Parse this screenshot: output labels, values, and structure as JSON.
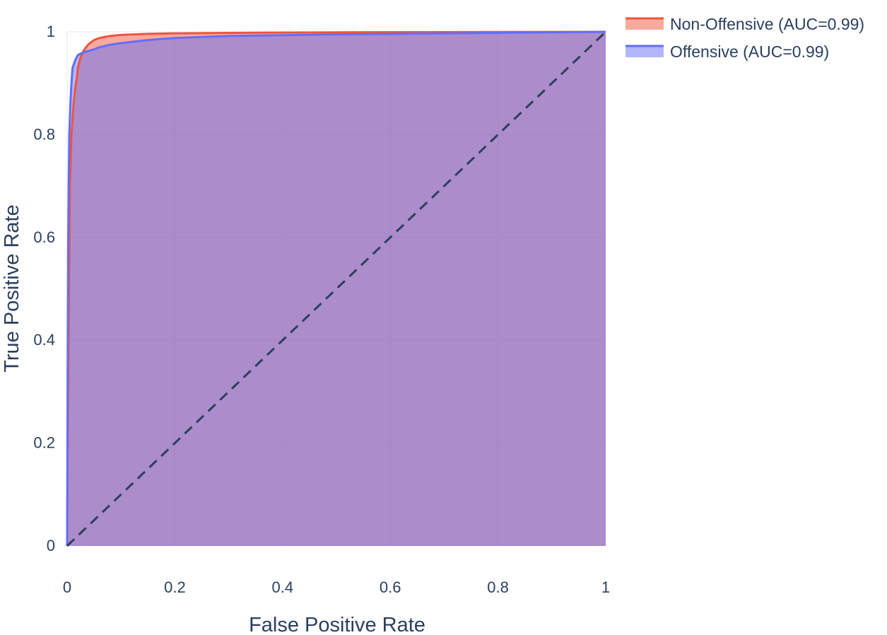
{
  "chart_data": {
    "type": "area",
    "xlabel": "False Positive Rate",
    "ylabel": "True Positive Rate",
    "xlim": [
      0,
      1
    ],
    "ylim": [
      0,
      1
    ],
    "x_ticks": [
      "0",
      "0.2",
      "0.4",
      "0.6",
      "0.8",
      "1"
    ],
    "y_ticks": [
      "0",
      "0.2",
      "0.4",
      "0.6",
      "0.8",
      "1"
    ],
    "grid": true,
    "legend_position": "top-right",
    "series": [
      {
        "name": "Non-Offensive (AUC=0.99)",
        "color": "#ef553b",
        "fill": true,
        "x": [
          0,
          0.001,
          0.003,
          0.005,
          0.008,
          0.01,
          0.012,
          0.015,
          0.018,
          0.02,
          0.025,
          0.03,
          0.035,
          0.04,
          0.05,
          0.06,
          0.08,
          0.1,
          0.15,
          0.2,
          0.3,
          0.5,
          0.7,
          1
        ],
        "y": [
          0,
          0.2,
          0.45,
          0.7,
          0.8,
          0.83,
          0.86,
          0.89,
          0.91,
          0.93,
          0.95,
          0.962,
          0.97,
          0.976,
          0.984,
          0.988,
          0.992,
          0.994,
          0.996,
          0.997,
          0.998,
          0.999,
          0.9995,
          1
        ]
      },
      {
        "name": "Offensive (AUC=0.99)",
        "color": "#636efa",
        "fill": true,
        "x": [
          0,
          0.001,
          0.002,
          0.003,
          0.004,
          0.006,
          0.008,
          0.01,
          0.015,
          0.02,
          0.03,
          0.04,
          0.05,
          0.06,
          0.08,
          0.1,
          0.15,
          0.2,
          0.3,
          0.5,
          0.7,
          1
        ],
        "y": [
          0,
          0.35,
          0.6,
          0.72,
          0.8,
          0.86,
          0.9,
          0.93,
          0.945,
          0.955,
          0.96,
          0.963,
          0.966,
          0.97,
          0.975,
          0.978,
          0.984,
          0.988,
          0.992,
          0.995,
          0.997,
          1
        ]
      },
      {
        "name": "",
        "color": "#2a3f5f",
        "dash": "dash",
        "fill": false,
        "x": [
          0,
          1
        ],
        "y": [
          0,
          1
        ]
      }
    ]
  }
}
